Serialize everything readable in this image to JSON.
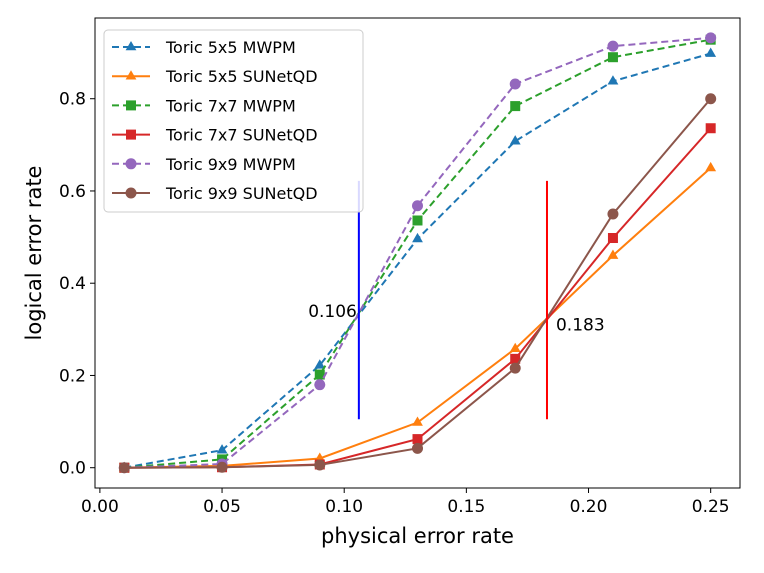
{
  "chart_data": {
    "type": "line",
    "title": "",
    "xlabel": "physical error rate",
    "ylabel": "logical error rate",
    "xlim": [
      -0.002,
      0.262
    ],
    "ylim": [
      -0.044,
      0.975
    ],
    "x_ticks": [
      0.0,
      0.05,
      0.1,
      0.15,
      0.2,
      0.25
    ],
    "x_tick_labels": [
      "0.00",
      "0.05",
      "0.10",
      "0.15",
      "0.20",
      "0.25"
    ],
    "y_ticks": [
      0.0,
      0.2,
      0.4,
      0.6,
      0.8
    ],
    "y_tick_labels": [
      "0.0",
      "0.2",
      "0.4",
      "0.6",
      "0.8"
    ],
    "x": [
      0.01,
      0.05,
      0.09,
      0.13,
      0.17,
      0.21,
      0.25
    ],
    "legend_position": "upper-left",
    "series": [
      {
        "name": "Toric 5x5 MWPM",
        "color": "#1f77b4",
        "dashed": true,
        "marker": "triangle",
        "values": [
          0.0,
          0.038,
          0.222,
          0.496,
          0.708,
          0.838,
          0.898
        ]
      },
      {
        "name": "Toric 5x5 SUNetQD",
        "color": "#ff7f0e",
        "dashed": false,
        "marker": "triangle",
        "values": [
          0.0,
          0.004,
          0.02,
          0.098,
          0.258,
          0.46,
          0.65
        ]
      },
      {
        "name": "Toric 7x7 MWPM",
        "color": "#2ca02c",
        "dashed": true,
        "marker": "square",
        "values": [
          0.0,
          0.018,
          0.202,
          0.536,
          0.784,
          0.89,
          0.928
        ]
      },
      {
        "name": "Toric 7x7 SUNetQD",
        "color": "#d62728",
        "dashed": false,
        "marker": "square",
        "values": [
          0.0,
          0.001,
          0.007,
          0.062,
          0.236,
          0.498,
          0.736
        ]
      },
      {
        "name": "Toric 9x9 MWPM",
        "color": "#9467bd",
        "dashed": true,
        "marker": "circle",
        "values": [
          0.0,
          0.008,
          0.18,
          0.568,
          0.832,
          0.914,
          0.932
        ]
      },
      {
        "name": "Toric 9x9 SUNetQD",
        "color": "#8c564b",
        "dashed": false,
        "marker": "circle",
        "values": [
          0.0,
          0.001,
          0.006,
          0.042,
          0.216,
          0.55,
          0.8
        ]
      }
    ],
    "threshold_lines": [
      {
        "x": 0.106,
        "y_range": [
          0.105,
          0.622
        ],
        "color": "#0000ff",
        "label": "0.106",
        "label_y": 0.34,
        "label_side": "left"
      },
      {
        "x": 0.183,
        "y_range": [
          0.105,
          0.622
        ],
        "color": "#ff0000",
        "label": "0.183",
        "label_y": 0.31,
        "label_side": "right"
      }
    ]
  }
}
